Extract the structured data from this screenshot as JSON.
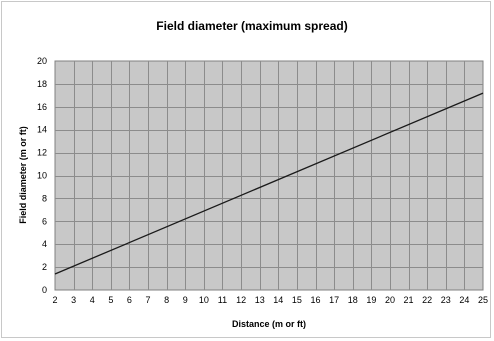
{
  "chart_data": {
    "type": "line",
    "title": "Field diameter (maximum spread)",
    "xlabel": "Distance (m or ft)",
    "ylabel": "Field diameter (m or ft)",
    "x_categories": [
      "2",
      "3",
      "4",
      "5",
      "6",
      "7",
      "8",
      "9",
      "10",
      "11",
      "12",
      "13",
      "14",
      "15",
      "16",
      "17",
      "18",
      "19",
      "20",
      "21",
      "22",
      "23",
      "24",
      "25"
    ],
    "x_range": [
      2,
      25
    ],
    "y_range": [
      0,
      20
    ],
    "y_ticks": [
      0,
      2,
      4,
      6,
      8,
      10,
      12,
      14,
      16,
      18,
      20
    ],
    "grid": true,
    "legend": "none",
    "series": [
      {
        "x": [
          2,
          25
        ],
        "y": [
          1.4,
          17.2
        ]
      }
    ],
    "colors": {
      "plot_background": "#c8c8c8",
      "gridline": "#8c8c8c",
      "line": "#1a1a1a"
    }
  }
}
